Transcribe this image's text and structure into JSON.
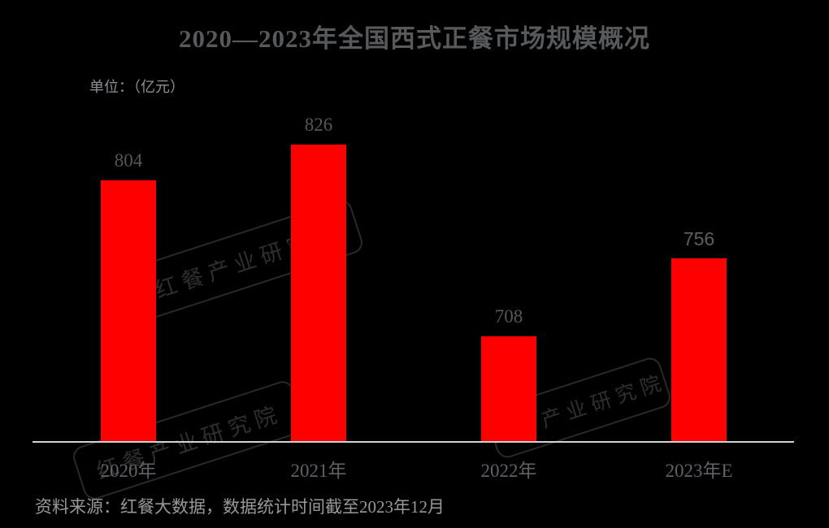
{
  "chart_data": {
    "type": "bar",
    "title": "2020—2023年全国西式正餐市场规模概况",
    "unit_label": "单位：（亿元）",
    "categories": [
      "2020年",
      "2021年",
      "2022年",
      "2023年E"
    ],
    "values": [
      804,
      826,
      708,
      756
    ],
    "estimate_flags": [
      false,
      false,
      false,
      true
    ],
    "xlabel": "",
    "ylabel": "",
    "ylim": [
      643,
      870
    ],
    "grid": false,
    "legend": false,
    "value_labels_shown": true,
    "bar_color": "#ff0000",
    "background_color": "#000000",
    "axis_line_color": "#d3d3d3"
  },
  "source_note": "资料来源：红餐大数据，数据统计时间截至2023年12月",
  "watermark": {
    "text": "红餐产业研究院"
  },
  "colors": {
    "title": "#58595b",
    "value_label": "#55565a",
    "category_label": "#606166",
    "unit_label": "#8d8f92",
    "source": "#98989a"
  }
}
